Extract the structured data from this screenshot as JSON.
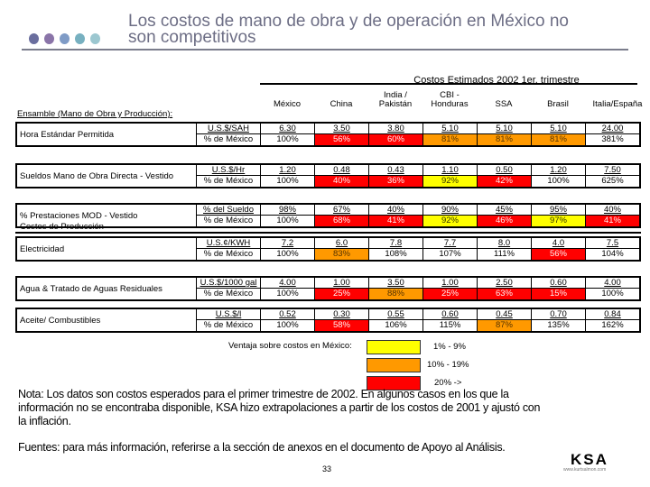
{
  "header": {
    "title_line1": "Los costos de mano de obra y de operación en México no",
    "title_line2": "son competitivos",
    "dot_colors": [
      "#6a6e9e",
      "#8a74a8",
      "#7f9bc6",
      "#77b0c0",
      "#9cc7d0"
    ]
  },
  "table": {
    "super_header": "Costos Estimados 2002 1er. trimestre",
    "columns": [
      {
        "label": "México"
      },
      {
        "label": "China"
      },
      {
        "label": "India / Pakistán"
      },
      {
        "label": "CBI - Honduras"
      },
      {
        "label": "SSA"
      },
      {
        "label": "Brasil"
      },
      {
        "label": "Italia/España"
      }
    ],
    "section1": "Ensamble (Mano de Obra y Producción):",
    "section2": "Costos de Producción",
    "rows": [
      {
        "label": "Hora Estándar Permitida",
        "unit": "U.S.$/SAH",
        "values": [
          "6.30",
          "3.50",
          "3.80",
          "5.10",
          "5.10",
          "5.10",
          "24.00"
        ],
        "pct_label": "% de México",
        "pcts": [
          "100%",
          "56%",
          "60%",
          "81%",
          "81%",
          "81%",
          "381%"
        ],
        "pct_colors": [
          "",
          "red",
          "red",
          "orange",
          "orange",
          "orange",
          ""
        ]
      },
      {
        "label": "Sueldos Mano de Obra Directa - Vestido",
        "unit": "U.S.$/Hr",
        "values": [
          "1.20",
          "0.48",
          "0.43",
          "1.10",
          "0.50",
          "1.20",
          "7.50"
        ],
        "pct_label": "% de México",
        "pcts": [
          "100%",
          "40%",
          "36%",
          "92%",
          "42%",
          "100%",
          "625%"
        ],
        "pct_colors": [
          "",
          "red",
          "red",
          "yellow",
          "red",
          "",
          ""
        ]
      },
      {
        "label": "% Prestaciones MOD - Vestido",
        "unit": "% del Sueldo",
        "values": [
          "98%",
          "67%",
          "40%",
          "90%",
          "45%",
          "95%",
          "40%"
        ],
        "pct_label": "% de México",
        "pcts": [
          "100%",
          "68%",
          "41%",
          "92%",
          "46%",
          "97%",
          "41%"
        ],
        "pct_colors": [
          "",
          "red",
          "red",
          "yellow",
          "red",
          "yellow",
          "red"
        ]
      },
      {
        "label": "Electricidad",
        "unit": "U.S.¢/KWH",
        "values": [
          "7.2",
          "6.0",
          "7.8",
          "7.7",
          "8.0",
          "4.0",
          "7.5"
        ],
        "pct_label": "% de México",
        "pcts": [
          "100%",
          "83%",
          "108%",
          "107%",
          "111%",
          "56%",
          "104%"
        ],
        "pct_colors": [
          "",
          "orange",
          "",
          "",
          "",
          "red",
          ""
        ]
      },
      {
        "label": "Agua & Tratado de Aguas Residuales",
        "unit": "U.S.$/1000 gal",
        "values": [
          "4.00",
          "1.00",
          "3.50",
          "1.00",
          "2.50",
          "0.60",
          "4.00"
        ],
        "pct_label": "% de México",
        "pcts": [
          "100%",
          "25%",
          "88%",
          "25%",
          "63%",
          "15%",
          "100%"
        ],
        "pct_colors": [
          "",
          "red",
          "orange",
          "red",
          "red",
          "red",
          ""
        ]
      },
      {
        "label": "Aceite/ Combustibles",
        "unit": "U.S.$/l",
        "values": [
          "0.52",
          "0.30",
          "0.55",
          "0.60",
          "0.45",
          "0.70",
          "0.84"
        ],
        "pct_label": "% de México",
        "pcts": [
          "100%",
          "58%",
          "106%",
          "115%",
          "87%",
          "135%",
          "162%"
        ],
        "pct_colors": [
          "",
          "red",
          "",
          "",
          "orange",
          "",
          ""
        ]
      }
    ]
  },
  "legend": {
    "label": "Ventaja sobre costos en México:",
    "items": [
      {
        "color": "#ffff00",
        "text": "1% - 9%"
      },
      {
        "color": "#ff9900",
        "text": "10% - 19%"
      },
      {
        "color": "#ff0000",
        "text": "20% ->"
      }
    ]
  },
  "footer": {
    "note": "Nota:  Los datos son costos esperados para el primer trimestre de 2002.  En algunos casos en los que la información no se encontraba disponible, KSA hizo extrapolaciones a partir de los costos de 2001 y ajustó con la inflación.",
    "sources": "Fuentes: para más información, referirse a la sección de anexos en el documento de Apoyo al Análisis.",
    "page_number": "33",
    "logo": "KSA",
    "logo_sub": "www.kurtsalmon.com"
  }
}
